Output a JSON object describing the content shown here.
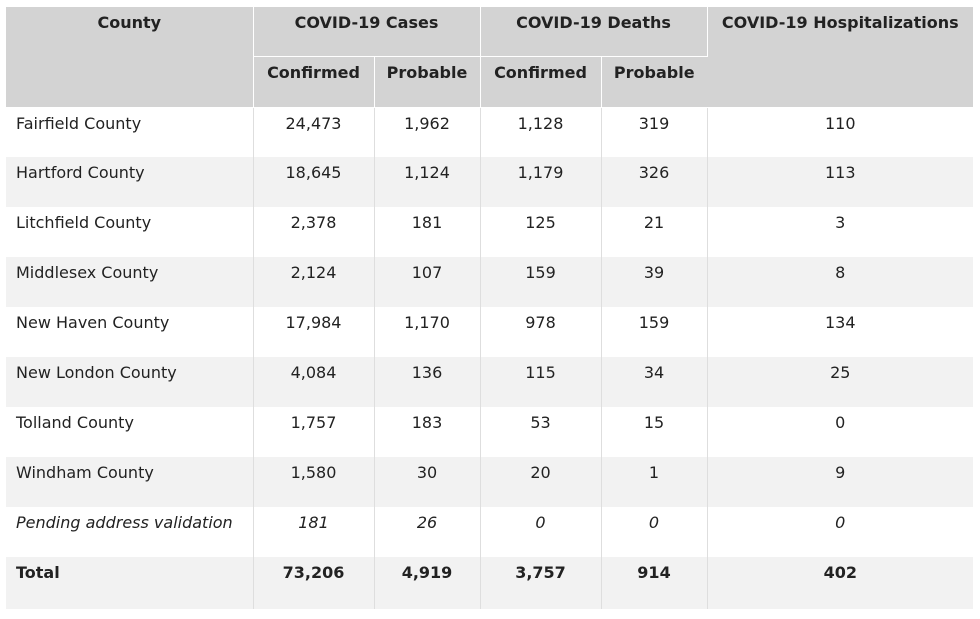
{
  "table": {
    "headers": {
      "county": "County",
      "cases": "COVID-19 Cases",
      "deaths": "COVID-19 Deaths",
      "hospitalizations": "COVID-19 Hospitalizations",
      "confirmed": "Confirmed",
      "probable": "Probable"
    },
    "rows": [
      {
        "county": "Fairfield County",
        "cases_confirmed": "24,473",
        "cases_probable": "1,962",
        "deaths_confirmed": "1,128",
        "deaths_probable": "319",
        "hospitalizations": "110"
      },
      {
        "county": "Hartford County",
        "cases_confirmed": "18,645",
        "cases_probable": "1,124",
        "deaths_confirmed": "1,179",
        "deaths_probable": "326",
        "hospitalizations": "113"
      },
      {
        "county": "Litchfield County",
        "cases_confirmed": "2,378",
        "cases_probable": "181",
        "deaths_confirmed": "125",
        "deaths_probable": "21",
        "hospitalizations": "3"
      },
      {
        "county": "Middlesex County",
        "cases_confirmed": "2,124",
        "cases_probable": "107",
        "deaths_confirmed": "159",
        "deaths_probable": "39",
        "hospitalizations": "8"
      },
      {
        "county": "New Haven County",
        "cases_confirmed": "17,984",
        "cases_probable": "1,170",
        "deaths_confirmed": "978",
        "deaths_probable": "159",
        "hospitalizations": "134"
      },
      {
        "county": "New London County",
        "cases_confirmed": "4,084",
        "cases_probable": "136",
        "deaths_confirmed": "115",
        "deaths_probable": "34",
        "hospitalizations": "25"
      },
      {
        "county": "Tolland County",
        "cases_confirmed": "1,757",
        "cases_probable": "183",
        "deaths_confirmed": "53",
        "deaths_probable": "15",
        "hospitalizations": "0"
      },
      {
        "county": "Windham County",
        "cases_confirmed": "1,580",
        "cases_probable": "30",
        "deaths_confirmed": "20",
        "deaths_probable": "1",
        "hospitalizations": "9"
      },
      {
        "county": "Pending address validation",
        "cases_confirmed": "181",
        "cases_probable": "26",
        "deaths_confirmed": "0",
        "deaths_probable": "0",
        "hospitalizations": "0"
      }
    ],
    "total": {
      "county": "Total",
      "cases_confirmed": "73,206",
      "cases_probable": "4,919",
      "deaths_confirmed": "3,757",
      "deaths_probable": "914",
      "hospitalizations": "402"
    }
  }
}
